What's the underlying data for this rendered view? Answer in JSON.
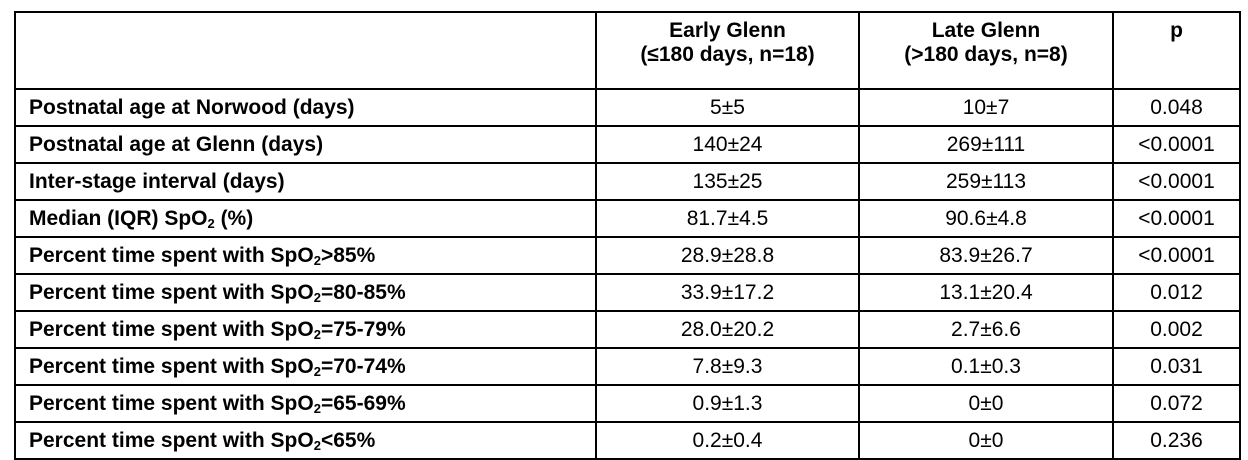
{
  "table": {
    "headers": {
      "label": "",
      "early_line1": "Early Glenn",
      "early_line2": "(≤180 days, n=18)",
      "late_line1": "Late Glenn",
      "late_line2": "(>180 days, n=8)",
      "p": "p"
    },
    "rows": [
      {
        "label_pre": "Postnatal age at Norwood (days)",
        "label_sub": "",
        "label_post": "",
        "early": "5±5",
        "late": "10±7",
        "p": "0.048"
      },
      {
        "label_pre": "Postnatal age at Glenn (days)",
        "label_sub": "",
        "label_post": "",
        "early": "140±24",
        "late": "269±111",
        "p": "<0.0001"
      },
      {
        "label_pre": "Inter-stage interval (days)",
        "label_sub": "",
        "label_post": "",
        "early": "135±25",
        "late": "259±113",
        "p": "<0.0001"
      },
      {
        "label_pre": "Median (IQR) SpO",
        "label_sub": "2",
        "label_post": " (%)",
        "early": "81.7±4.5",
        "late": "90.6±4.8",
        "p": "<0.0001"
      },
      {
        "label_pre": "Percent time spent with SpO",
        "label_sub": "2",
        "label_post": ">85%",
        "early": "28.9±28.8",
        "late": "83.9±26.7",
        "p": "<0.0001"
      },
      {
        "label_pre": "Percent time spent with SpO",
        "label_sub": "2",
        "label_post": "=80-85%",
        "early": "33.9±17.2",
        "late": "13.1±20.4",
        "p": "0.012"
      },
      {
        "label_pre": "Percent time spent with SpO",
        "label_sub": "2",
        "label_post": "=75-79%",
        "early": "28.0±20.2",
        "late": "2.7±6.6",
        "p": "0.002"
      },
      {
        "label_pre": "Percent time spent with SpO",
        "label_sub": "2",
        "label_post": "=70-74%",
        "early": "7.8±9.3",
        "late": "0.1±0.3",
        "p": "0.031"
      },
      {
        "label_pre": "Percent time spent with SpO",
        "label_sub": "2",
        "label_post": "=65-69%",
        "early": "0.9±1.3",
        "late": "0±0",
        "p": "0.072"
      },
      {
        "label_pre": "Percent time spent with SpO",
        "label_sub": "2",
        "label_post": "<65%",
        "early": "0.2±0.4",
        "late": "0±0",
        "p": "0.236"
      }
    ]
  }
}
